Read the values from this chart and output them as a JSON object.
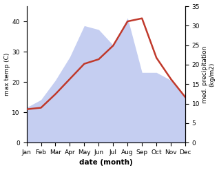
{
  "months": [
    "Jan",
    "Feb",
    "Mar",
    "Apr",
    "May",
    "Jun",
    "Jul",
    "Aug",
    "Sep",
    "Oct",
    "Nov",
    "Dec"
  ],
  "temp": [
    11,
    11.5,
    16,
    21,
    26,
    27.5,
    32,
    40,
    41,
    28,
    21,
    15
  ],
  "precip": [
    9,
    11,
    16,
    22,
    30,
    29,
    25,
    32,
    18,
    18,
    16,
    12
  ],
  "temp_color": "#c0392b",
  "precip_fill_color": "#bfc9f0",
  "temp_ylim": [
    0,
    45
  ],
  "precip_ylim": [
    0,
    35
  ],
  "temp_yticks": [
    0,
    10,
    20,
    30,
    40
  ],
  "precip_yticks": [
    0,
    5,
    10,
    15,
    20,
    25,
    30,
    35
  ],
  "ylabel_left": "max temp (C)",
  "ylabel_right": "med. precipitation\n(kg/m2)",
  "xlabel": "date (month)",
  "background_color": "#ffffff",
  "temp_linewidth": 1.8,
  "label_fontsize": 6.5,
  "xlabel_fontsize": 7.5
}
